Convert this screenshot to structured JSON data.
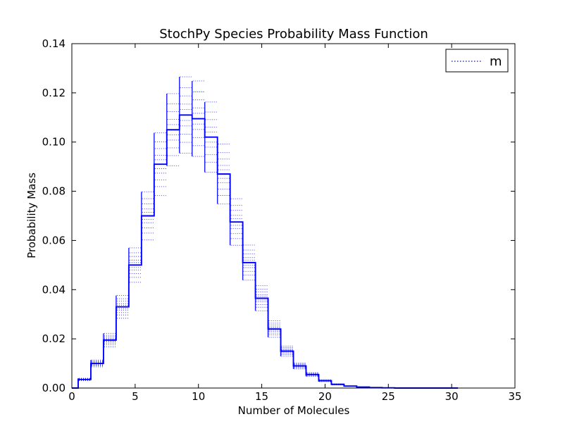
{
  "chart_data": {
    "type": "line",
    "title": "StochPy Species Probability Mass Function",
    "xlabel": "Number of Molecules",
    "ylabel": "Probability Mass",
    "xlim": [
      0,
      35
    ],
    "ylim": [
      0,
      0.14
    ],
    "x_ticks": [
      0,
      5,
      10,
      15,
      20,
      25,
      30,
      35
    ],
    "y_ticks": [
      0.0,
      0.02,
      0.04,
      0.06,
      0.08,
      0.1,
      0.12,
      0.14
    ],
    "grid": false,
    "legend": {
      "position": "top-right",
      "entries": [
        {
          "label": "m",
          "color": "#0000ff",
          "line_style": "dotted"
        }
      ]
    },
    "series": [
      {
        "name": "m",
        "color": "#0000ff",
        "line_style": "dotted",
        "x": [
          0,
          1,
          2,
          3,
          4,
          5,
          6,
          7,
          8,
          9,
          10,
          11,
          12,
          13,
          14,
          15,
          16,
          17,
          18,
          19,
          20,
          21,
          22,
          23,
          24,
          25,
          26,
          27,
          28,
          29,
          30
        ],
        "values": [
          0.0,
          0.0035,
          0.01,
          0.0195,
          0.033,
          0.05,
          0.07,
          0.091,
          0.105,
          0.111,
          0.1095,
          0.102,
          0.087,
          0.0675,
          0.051,
          0.0365,
          0.024,
          0.015,
          0.009,
          0.0055,
          0.003,
          0.0015,
          0.0008,
          0.0004,
          0.0002,
          0.0001,
          0.0,
          0.0,
          0.0,
          0.0,
          0.0
        ]
      }
    ]
  }
}
